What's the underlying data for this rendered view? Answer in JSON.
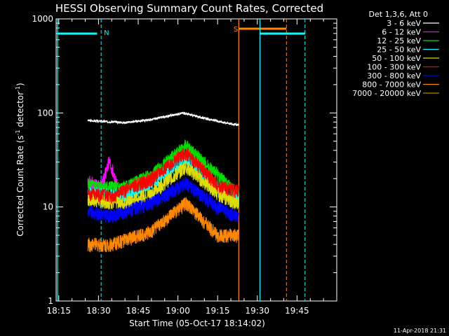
{
  "chart_data": {
    "type": "line",
    "title": "HESSI Observing Summary Count Rates, Corrected",
    "xlabel": "Start Time (05-Oct-17 18:14:02)",
    "ylabel_main": "Corrected Count Rate (s",
    "ylabel_sup1": "-1",
    "ylabel_mid": " detector",
    "ylabel_sup2": "-1",
    "ylabel_end": ")",
    "y_scale": "log",
    "ylim": [
      1,
      1000
    ],
    "xlim": [
      "18:14",
      "20:00"
    ],
    "x_ticks": [
      "18:15",
      "18:30",
      "18:45",
      "19:00",
      "19:15",
      "19:30",
      "19:45"
    ],
    "y_ticks": [
      "1",
      "10",
      "100",
      "1000"
    ],
    "legend_title": "Det 1,3,6, Att 0",
    "footer": "11-Apr-2018 21:31",
    "series": [
      {
        "name": "3 - 6 keV",
        "color": "#ffffff",
        "start": "18:26",
        "end": "19:23",
        "profile": [
          [
            "18:26",
            83
          ],
          [
            "18:40",
            79
          ],
          [
            "18:50",
            85
          ],
          [
            "19:02",
            100
          ],
          [
            "19:12",
            85
          ],
          [
            "19:22",
            75
          ]
        ]
      },
      {
        "name": "6 - 12 keV",
        "color": "#ff00ff",
        "start": "18:26",
        "end": "18:37",
        "profile": [
          [
            "18:26",
            19
          ],
          [
            "18:31",
            16
          ],
          [
            "18:34",
            31
          ],
          [
            "18:37",
            17
          ]
        ]
      },
      {
        "name": "12 - 25 keV",
        "color": "#00dd00",
        "start": "18:26",
        "end": "19:23",
        "profile": [
          [
            "18:26",
            17
          ],
          [
            "18:40",
            16
          ],
          [
            "18:50",
            22
          ],
          [
            "19:03",
            45
          ],
          [
            "19:15",
            22
          ],
          [
            "19:22",
            14
          ]
        ]
      },
      {
        "name": "25 - 50 keV",
        "color": "#00ffff",
        "start": "18:26",
        "end": "19:23",
        "profile": [
          [
            "18:26",
            14
          ],
          [
            "18:40",
            13
          ],
          [
            "18:50",
            18
          ],
          [
            "19:03",
            33
          ],
          [
            "19:15",
            16
          ],
          [
            "19:22",
            12
          ]
        ]
      },
      {
        "name": "50 - 100 keV",
        "color": "#dddd00",
        "start": "18:26",
        "end": "19:23",
        "profile": [
          [
            "18:26",
            12
          ],
          [
            "18:40",
            11
          ],
          [
            "18:50",
            14
          ],
          [
            "19:03",
            27
          ],
          [
            "19:15",
            14
          ],
          [
            "19:22",
            11
          ]
        ]
      },
      {
        "name": "100 - 300 keV",
        "color": "#ff0000",
        "start": "18:26",
        "end": "19:23",
        "profile": [
          [
            "18:26",
            14
          ],
          [
            "18:35",
            13
          ],
          [
            "18:50",
            20
          ],
          [
            "19:03",
            38
          ],
          [
            "19:15",
            17
          ],
          [
            "19:22",
            15
          ]
        ]
      },
      {
        "name": "300 - 800 keV",
        "color": "#0000ff",
        "start": "18:26",
        "end": "19:23",
        "profile": [
          [
            "18:26",
            9
          ],
          [
            "18:35",
            8
          ],
          [
            "18:50",
            11
          ],
          [
            "19:03",
            18
          ],
          [
            "19:15",
            10
          ],
          [
            "19:22",
            8
          ]
        ]
      },
      {
        "name": "800 - 7000 keV",
        "color": "#ff8800",
        "start": "18:26",
        "end": "19:23",
        "profile": [
          [
            "18:26",
            4
          ],
          [
            "18:35",
            4
          ],
          [
            "18:50",
            5.5
          ],
          [
            "19:03",
            11
          ],
          [
            "19:15",
            5
          ],
          [
            "19:22",
            5
          ]
        ]
      },
      {
        "name": "7000 - 20000 keV",
        "color": "#c08000",
        "start": "",
        "end": "",
        "profile": []
      }
    ],
    "annotations": [
      {
        "text": "N",
        "color": "#00ffff",
        "at": "18:31"
      },
      {
        "text": "S",
        "color": "#ff8800",
        "at": "19:20"
      }
    ]
  }
}
